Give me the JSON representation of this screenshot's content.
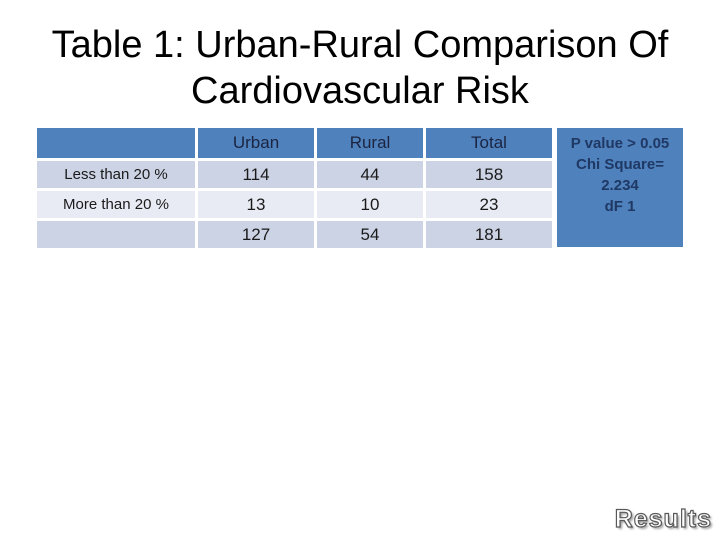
{
  "title": {
    "line1": "Table 1: Urban-Rural Comparison Of",
    "line2": "Cardiovascular Risk"
  },
  "table": {
    "header_cells": [
      "",
      "Urban",
      "Rural",
      "Total"
    ],
    "rows": [
      [
        "Less than 20 %",
        "114",
        "44",
        "158"
      ],
      [
        "More than 20 %",
        "13",
        "10",
        "23"
      ],
      [
        "",
        "127",
        "54",
        "181"
      ]
    ]
  },
  "stats_box": {
    "lines": [
      "P value > 0.05",
      "Chi Square=",
      "2.234",
      "dF 1"
    ]
  },
  "footer": {
    "results_label": "Results"
  },
  "colors": {
    "header_blue": "#4f81bd",
    "row_light": "#ccd3e4",
    "row_lighter": "#e9ebf4",
    "header_text": "#1b2440",
    "stats_text": "#1f3864",
    "body_text": "#1a1a1a",
    "title_text": "#000000",
    "results_fill": "#ffffff",
    "results_outline": "#595959"
  }
}
